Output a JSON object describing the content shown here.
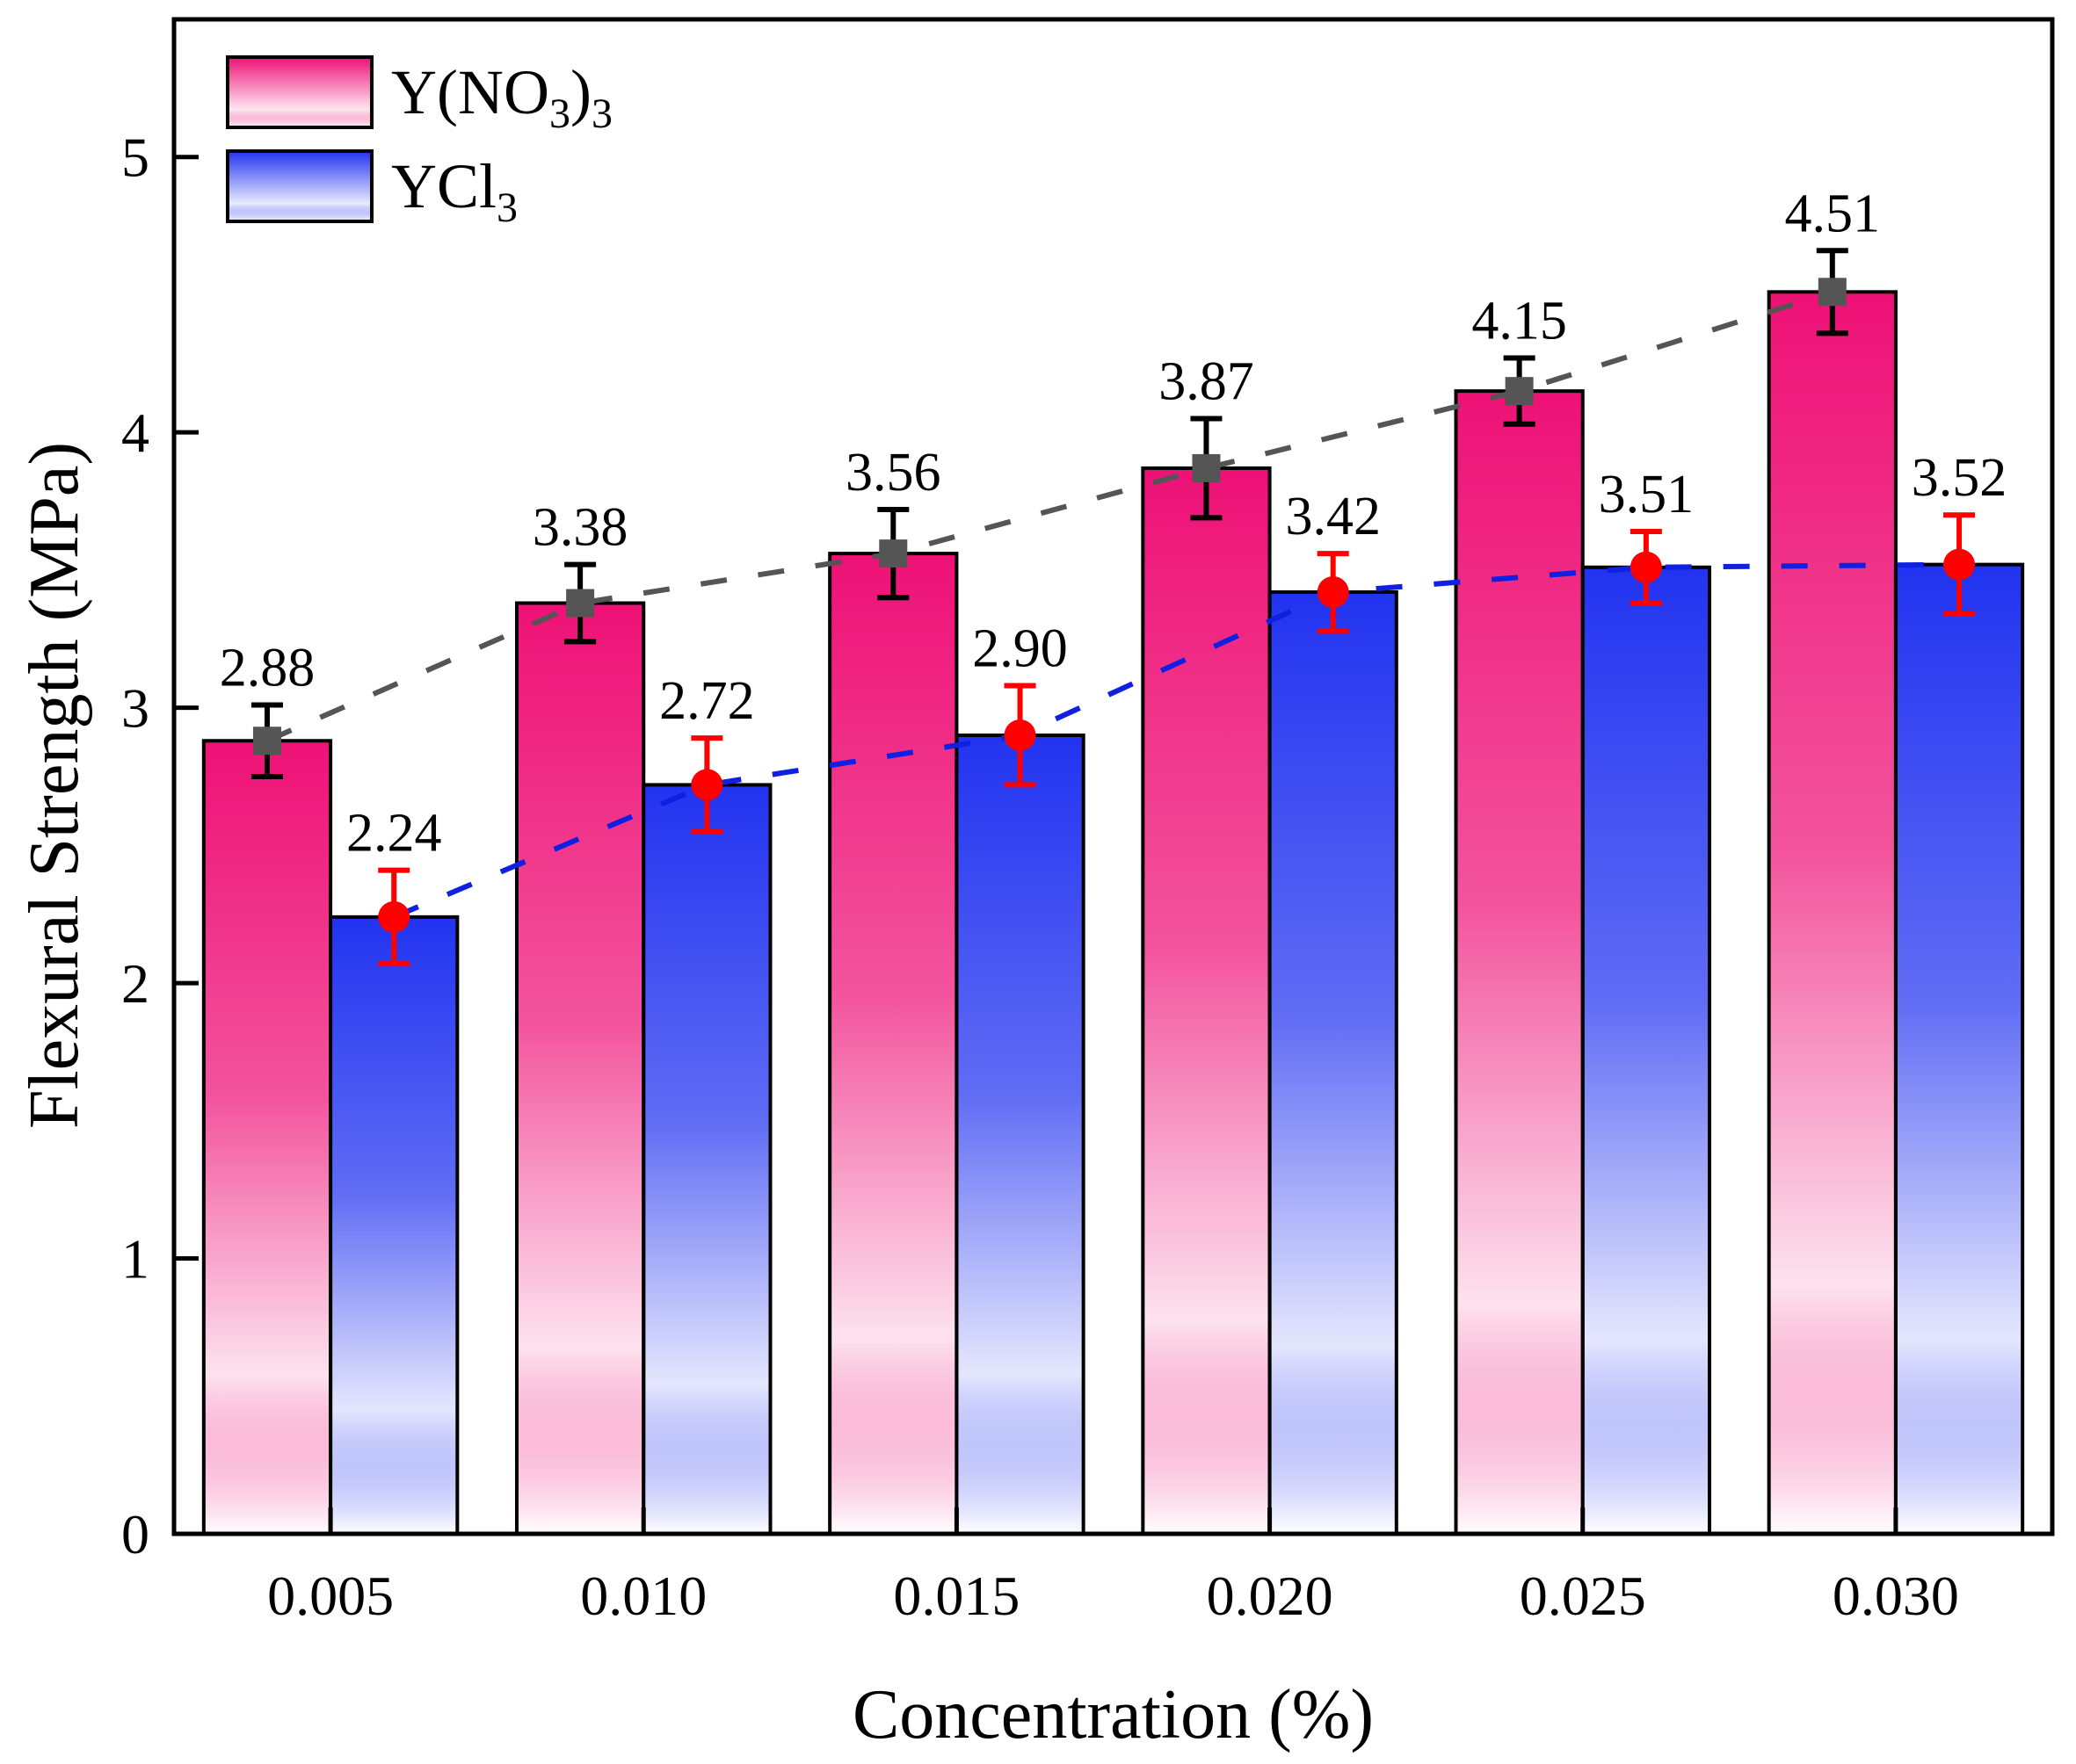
{
  "chart_data": {
    "type": "bar",
    "title": "",
    "xlabel": "Concentration (%)",
    "ylabel": "Flexural Strength (MPa)",
    "categories": [
      "0.005",
      "0.010",
      "0.015",
      "0.020",
      "0.025",
      "0.030"
    ],
    "ylim": [
      0,
      5.5
    ],
    "yticks": [
      0,
      1,
      2,
      3,
      4,
      5
    ],
    "grid": false,
    "legend_position": "top-left",
    "series": [
      {
        "name": "Y(NO3)3",
        "legend_main": "Y(NO",
        "legend_sub1": "3",
        "legend_mid": ")",
        "legend_sub2": "3",
        "color_top": "#EE1176",
        "color_bottom": "#FFFFFF",
        "marker": "square",
        "marker_color": "#555555",
        "errorbar_color": "#000000",
        "trend_line_color": "#555555",
        "values": [
          2.88,
          3.38,
          3.56,
          3.87,
          4.15,
          4.51
        ],
        "errors": [
          0.13,
          0.14,
          0.16,
          0.18,
          0.12,
          0.15
        ],
        "data_labels": [
          "2.88",
          "3.38",
          "3.56",
          "3.87",
          "4.15",
          "4.51"
        ]
      },
      {
        "name": "YCl3",
        "legend_main": "YCl",
        "legend_sub1": "3",
        "legend_mid": "",
        "legend_sub2": "",
        "color_top": "#2233F0",
        "color_bottom": "#FFFFFF",
        "marker": "circle",
        "marker_color": "#FF0000",
        "errorbar_color": "#FF0000",
        "trend_line_color": "#1020E0",
        "values": [
          2.24,
          2.72,
          2.9,
          3.42,
          3.51,
          3.52
        ],
        "errors": [
          0.17,
          0.17,
          0.18,
          0.14,
          0.13,
          0.18
        ],
        "data_labels": [
          "2.24",
          "2.72",
          "2.90",
          "3.42",
          "3.51",
          "3.52"
        ]
      }
    ]
  }
}
